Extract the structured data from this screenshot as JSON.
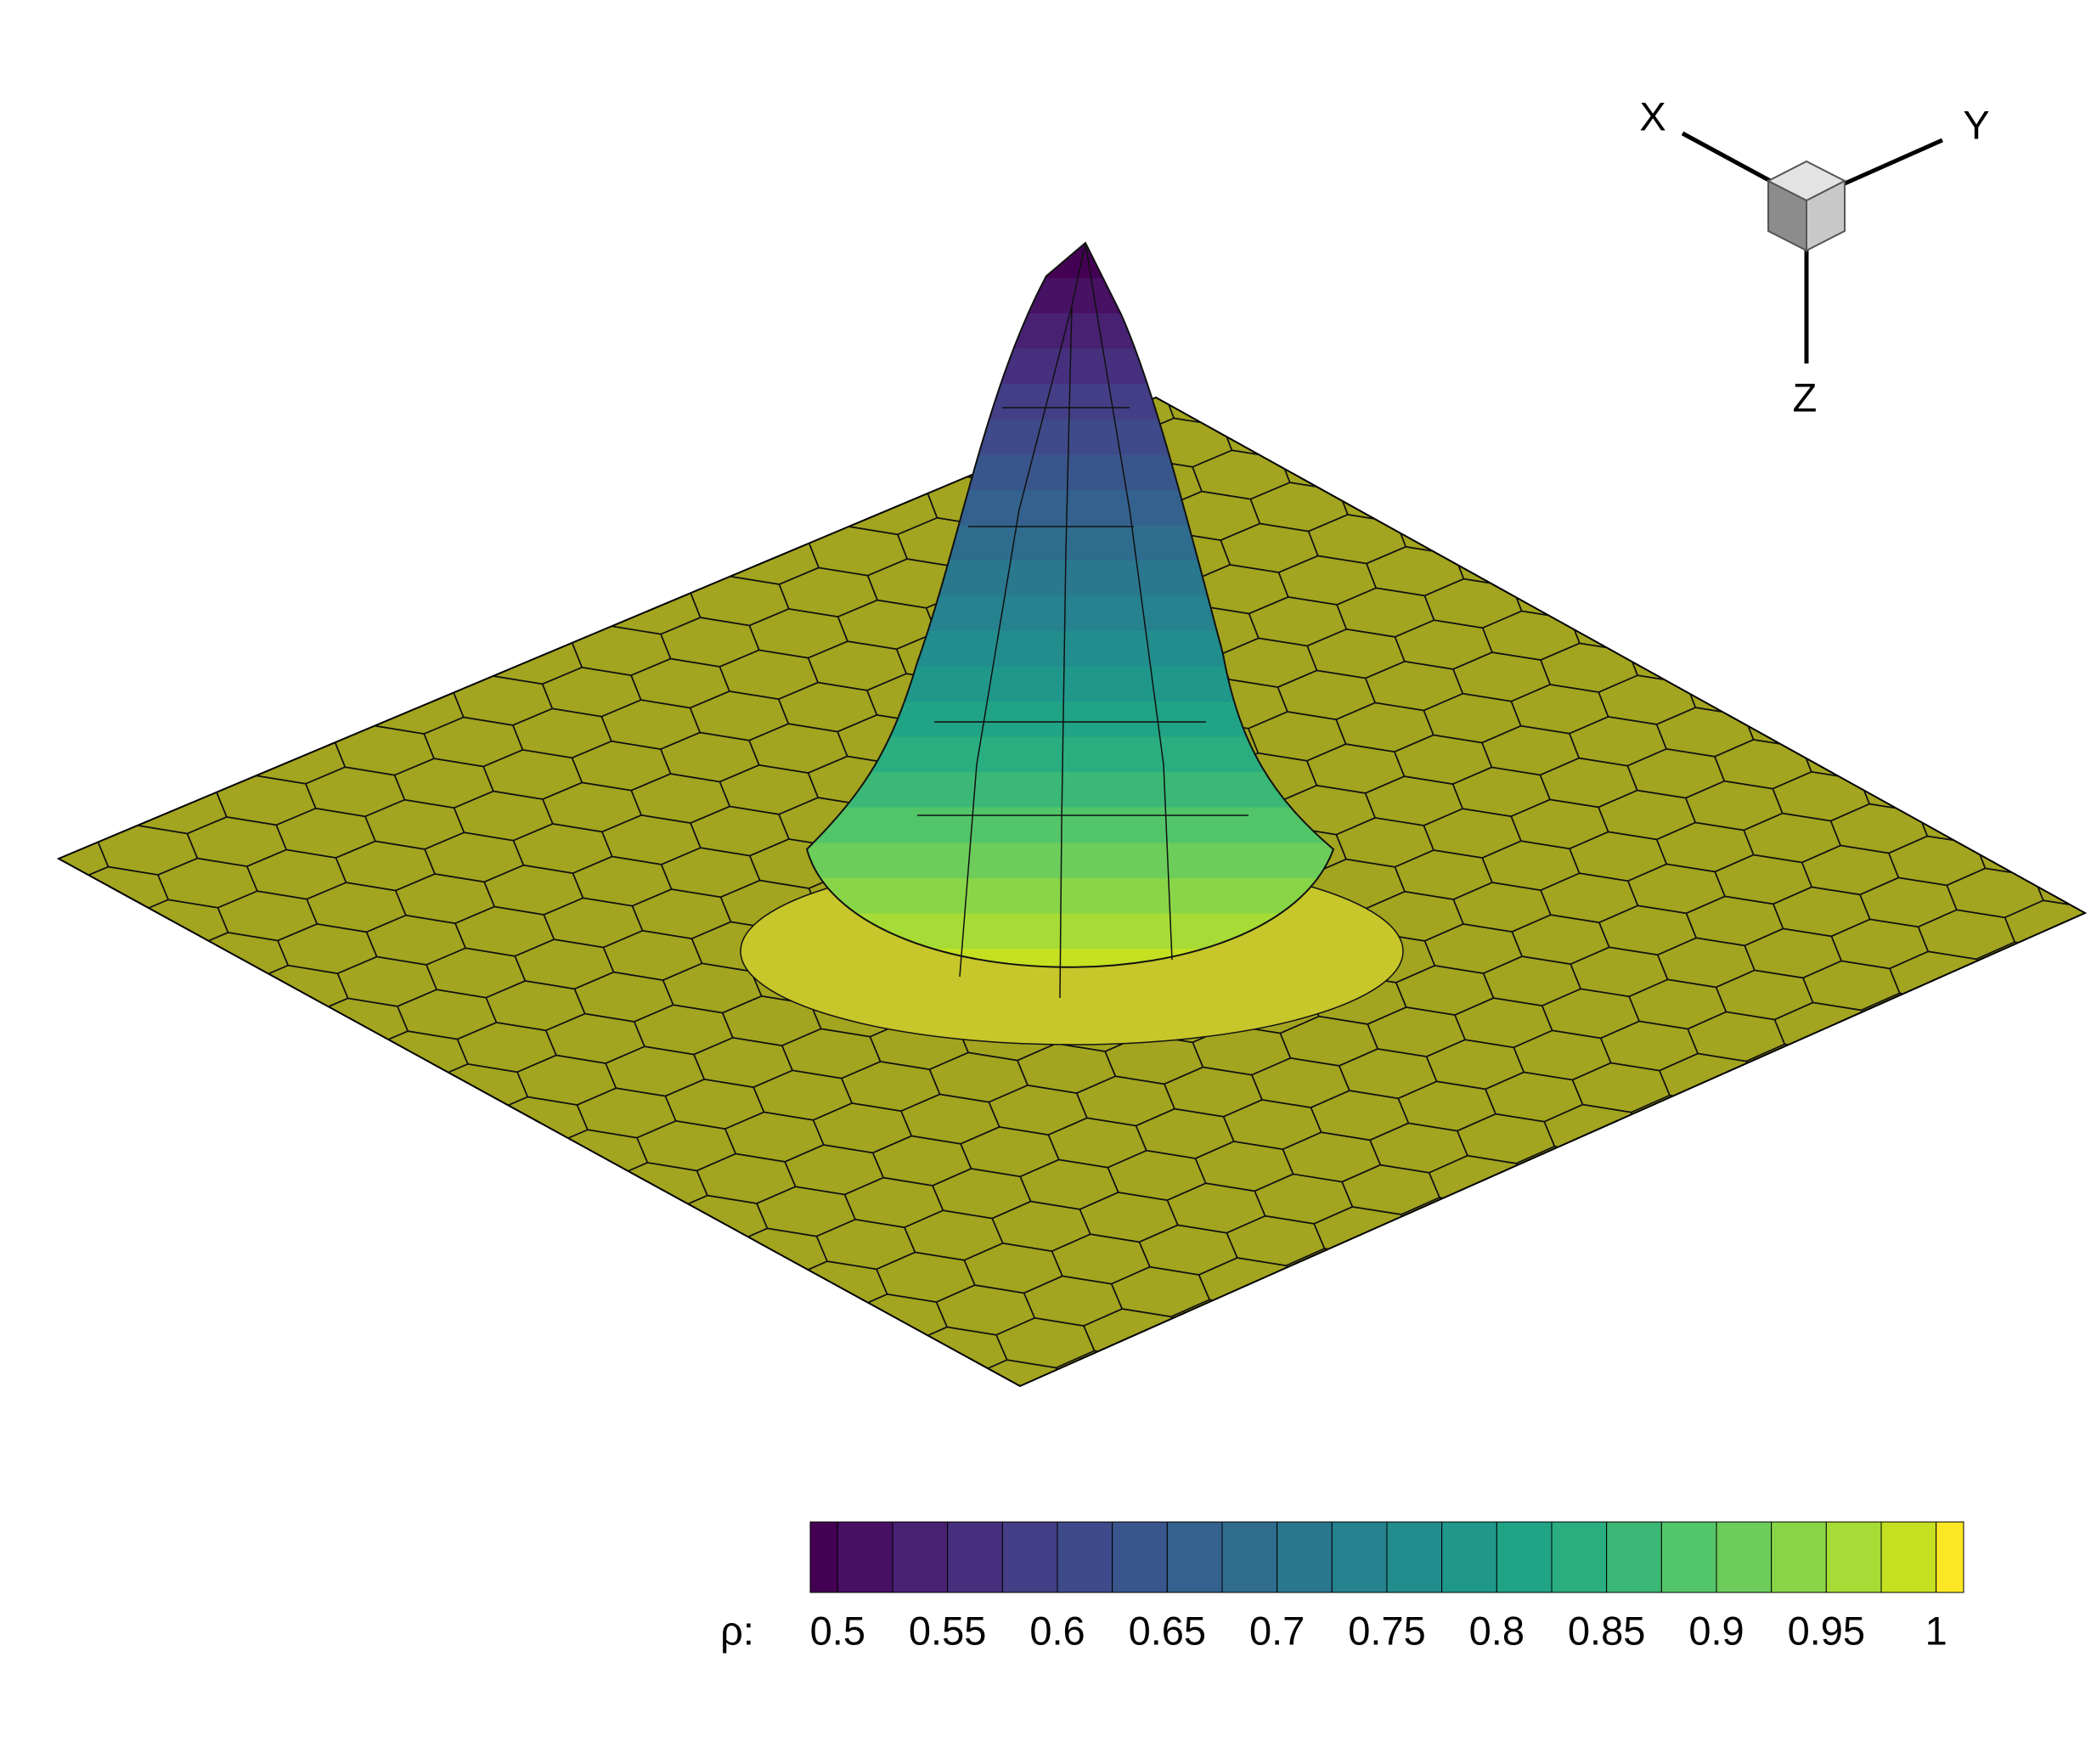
{
  "chart_data": {
    "type": "surface",
    "axis_triad": {
      "x": "X",
      "y": "Y",
      "z": "Z"
    },
    "colorbar": {
      "title": "ρ:",
      "lim": [
        0.4875,
        1.0125
      ],
      "ticks": [
        0.5,
        0.55,
        0.6,
        0.65,
        0.7,
        0.75,
        0.8,
        0.85,
        0.9,
        0.95,
        1
      ],
      "levels": [
        0.5,
        0.525,
        0.55,
        0.575,
        0.6,
        0.625,
        0.65,
        0.675,
        0.7,
        0.725,
        0.75,
        0.775,
        0.8,
        0.825,
        0.85,
        0.875,
        0.9,
        0.925,
        0.95,
        0.975,
        1.0
      ],
      "colors": [
        "#440154",
        "#471164",
        "#482173",
        "#46307e",
        "#433e85",
        "#3e4a89",
        "#39568c",
        "#34618d",
        "#2f6c8e",
        "#2a788e",
        "#26828e",
        "#228d8d",
        "#1f988b",
        "#21a386",
        "#2aad7f",
        "#3bb875",
        "#52c569",
        "#6ccd5a",
        "#89d548",
        "#a7db35",
        "#c5e021",
        "#fde725"
      ]
    },
    "surface_color": "#a3a41f"
  }
}
